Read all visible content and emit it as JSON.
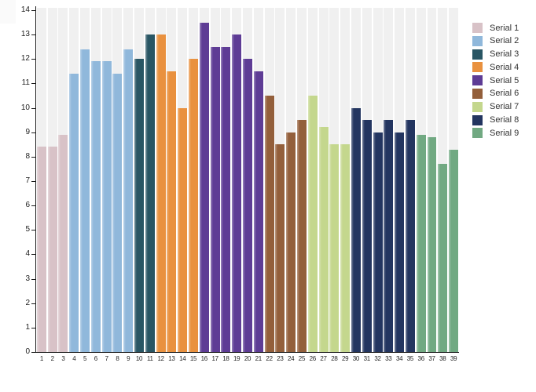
{
  "chart_data": {
    "type": "bar",
    "title": "",
    "xlabel": "",
    "ylabel": "",
    "ylim": [
      0,
      14
    ],
    "y_tick_step": 1,
    "grid": false,
    "plot_band_color": "#f0f0f0",
    "axis_color": "#1a1a1a",
    "legend_position": "right",
    "x_labels": [
      "1",
      "2",
      "3",
      "4",
      "5",
      "6",
      "7",
      "8",
      "9",
      "10",
      "11",
      "12",
      "13",
      "14",
      "15",
      "16",
      "17",
      "18",
      "19",
      "20",
      "21",
      "22",
      "23",
      "24",
      "25",
      "26",
      "27",
      "28",
      "29",
      "30",
      "31",
      "32",
      "33",
      "34",
      "35",
      "36",
      "37",
      "38",
      "39"
    ],
    "series": [
      {
        "name": "Serial 1",
        "color": "#d8c2c7",
        "values": [
          8.4,
          8.4,
          8.9
        ]
      },
      {
        "name": "Serial 2",
        "color": "#90b8db",
        "values": [
          11.4,
          12.4,
          11.9,
          11.9,
          11.4,
          12.4
        ]
      },
      {
        "name": "Serial 3",
        "color": "#295664",
        "values": [
          12,
          13
        ]
      },
      {
        "name": "Serial 4",
        "color": "#e9913f",
        "values": [
          13,
          11.5,
          10,
          12
        ]
      },
      {
        "name": "Serial 5",
        "color": "#5e3c95",
        "values": [
          13.5,
          12.5,
          12.5,
          13,
          12,
          11.5
        ]
      },
      {
        "name": "Serial 6",
        "color": "#935f3b",
        "values": [
          10.5,
          8.5,
          9,
          9.5
        ]
      },
      {
        "name": "Serial 7",
        "color": "#c4d78d",
        "values": [
          10.5,
          9.2,
          8.5,
          8.5
        ]
      },
      {
        "name": "Serial 8",
        "color": "#233560",
        "values": [
          10,
          9.5,
          9,
          9.5,
          9,
          9.5
        ]
      },
      {
        "name": "Serial 9",
        "color": "#71a982",
        "values": [
          8.9,
          8.8,
          7.7,
          8.3
        ]
      }
    ],
    "legend_entries": [
      "Serial 1",
      "Serial 2",
      "Serial 3",
      "Serial 4",
      "Serial 5",
      "Serial 6",
      "Serial 7",
      "Serial 8",
      "Serial 9"
    ]
  }
}
